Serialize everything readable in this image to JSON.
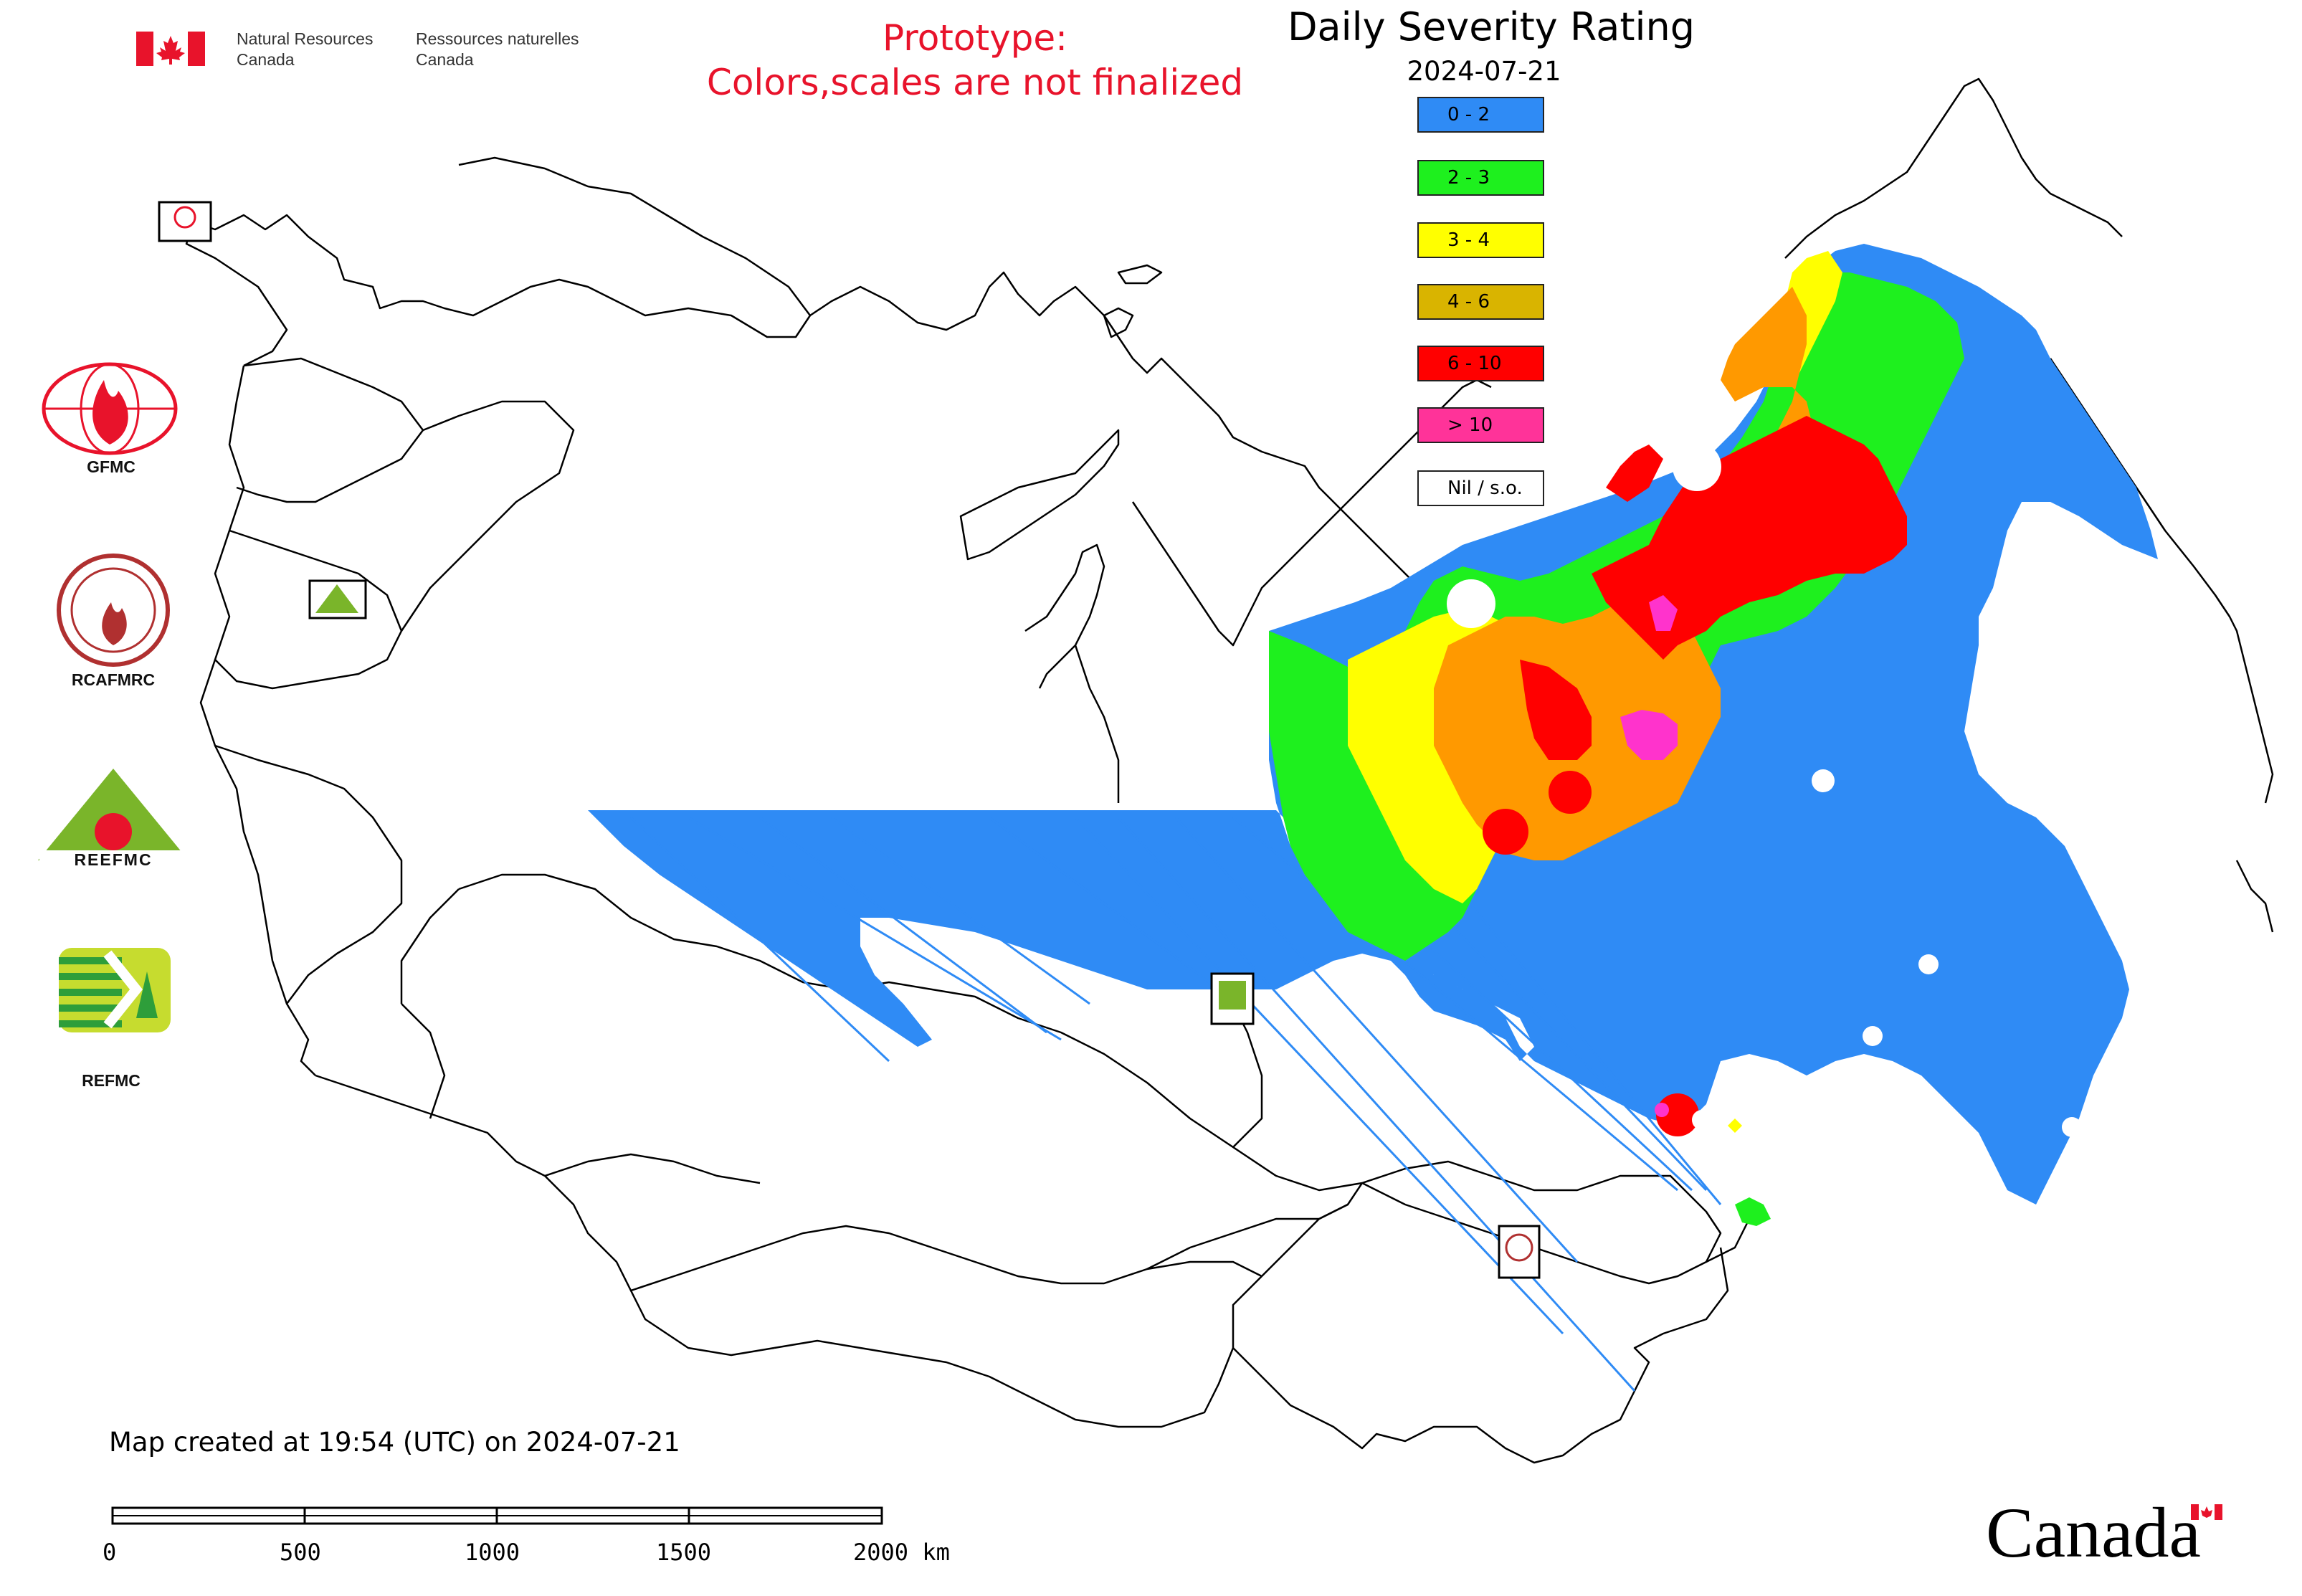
{
  "header": {
    "gov_en_line1": "Natural Resources",
    "gov_en_line2": "Canada",
    "gov_fr_line1": "Ressources naturelles",
    "gov_fr_line2": "Canada"
  },
  "notice": {
    "line1": "Prototype:",
    "line2": "Colors,scales are not finalized"
  },
  "map": {
    "title": "Daily Severity Rating",
    "date": "2024-07-21"
  },
  "legend": {
    "items": [
      {
        "label": "0 - 2",
        "color": "#2f8bf5"
      },
      {
        "label": "2 - 3",
        "color": "#1ef01e"
      },
      {
        "label": "3 - 4",
        "color": "#ffff00"
      },
      {
        "label": "4 - 6",
        "color": "#d9b400"
      },
      {
        "label": "6 - 10",
        "color": "#ff0000"
      },
      {
        "label": "> 10",
        "color": "#ff3399"
      },
      {
        "label": "Nil / s.o.",
        "color": "#ffffff"
      }
    ]
  },
  "logos": [
    {
      "name": "GFMC",
      "label": "GFMC"
    },
    {
      "name": "RCAFMRC",
      "label": "RCAFMRC"
    },
    {
      "name": "REEFMC",
      "label": "REEFMC"
    },
    {
      "name": "REFMC",
      "label": "REFMC"
    }
  ],
  "footer": {
    "created_text": "Map created at 19:54 (UTC) on 2024-07-21",
    "scale_labels": [
      "0",
      "500",
      "1000",
      "1500",
      "2000 km"
    ],
    "wordmark": "Canada"
  }
}
